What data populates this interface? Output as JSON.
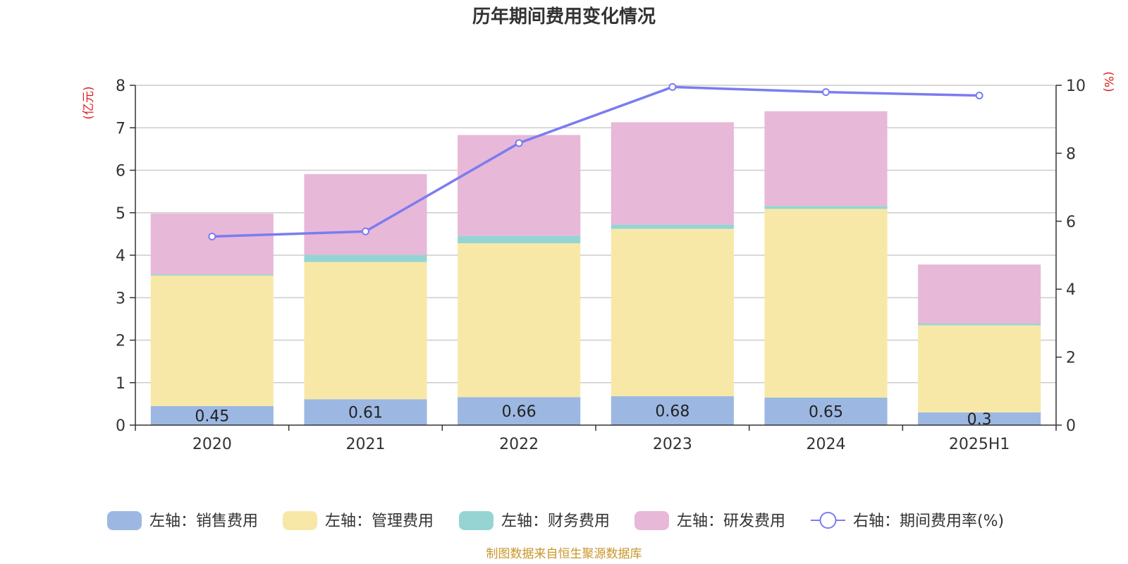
{
  "chart_data": {
    "type": "bar",
    "title": "历年期间费用变化情况",
    "categories": [
      "2020",
      "2021",
      "2022",
      "2023",
      "2024",
      "2025H1"
    ],
    "left_axis": {
      "unit_label": "(亿元)",
      "ylim": [
        0,
        8
      ],
      "ticks": [
        "0",
        "1",
        "2",
        "3",
        "4",
        "5",
        "6",
        "7",
        "8"
      ]
    },
    "right_axis": {
      "unit_label": "(%)",
      "ylim": [
        0,
        10
      ],
      "ticks": [
        "0",
        "2",
        "4",
        "6",
        "8",
        "10"
      ]
    },
    "stacked": true,
    "series": [
      {
        "name": "左轴：销售费用",
        "type": "bar",
        "axis": "left",
        "color": "#9cb8e2",
        "values": [
          0.45,
          0.61,
          0.66,
          0.68,
          0.65,
          0.3
        ],
        "labels": [
          "0.45",
          "0.61",
          "0.66",
          "0.68",
          "0.65",
          "0.3"
        ]
      },
      {
        "name": "左轴：管理费用",
        "type": "bar",
        "axis": "left",
        "color": "#f8e8a8",
        "values": [
          3.07,
          3.23,
          3.62,
          3.94,
          4.44,
          2.05
        ]
      },
      {
        "name": "左轴：财务费用",
        "type": "bar",
        "axis": "left",
        "color": "#96d4d4",
        "values": [
          0.03,
          0.17,
          0.18,
          0.1,
          0.07,
          0.04
        ]
      },
      {
        "name": "左轴：研发费用",
        "type": "bar",
        "axis": "left",
        "color": "#e8b8d8",
        "values": [
          1.43,
          1.9,
          2.37,
          2.41,
          2.23,
          1.39
        ]
      },
      {
        "name": "右轴：期间费用率(%)",
        "type": "line",
        "axis": "right",
        "color": "#7b7cf0",
        "values": [
          5.55,
          5.7,
          8.3,
          9.95,
          9.8,
          9.7
        ]
      }
    ],
    "grid": true,
    "legend_position": "bottom"
  },
  "colors": {
    "unit_label": "#e02020",
    "source_text": "#c8962a",
    "axis": "#333333",
    "gridline": "#cccccc"
  },
  "source": "制图数据来自恒生聚源数据库"
}
